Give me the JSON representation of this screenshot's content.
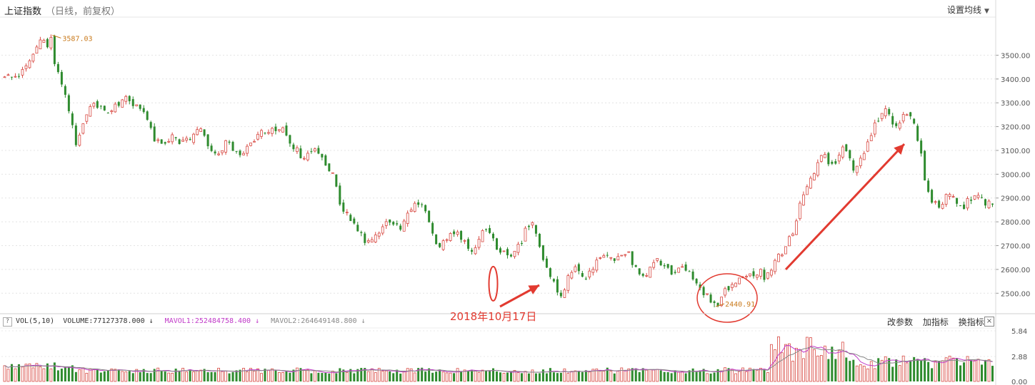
{
  "header": {
    "title": "上证指数",
    "subtitle": "（日线，前复权）",
    "ma_settings_label": "设置均线"
  },
  "volume_panel": {
    "help_icon": "?",
    "vol_label": "VOL(5,10)",
    "volume_text": "VOLUME:77127378.000",
    "volume_arrow": "↓",
    "mavol1_text": "MAVOL1:252484758.400",
    "mavol1_arrow": "↓",
    "mavol2_text": "MAVOL2:264649148.800",
    "mavol2_arrow": "↓",
    "tools": {
      "change_params": "改参数",
      "add_indicator": "加指标",
      "switch_indicator": "换指标"
    },
    "close_icon": "×",
    "ticks": [
      "5.84",
      "2.88",
      "0.00"
    ]
  },
  "annotations": {
    "high_label": "3587.03",
    "low_label": "2440.91",
    "date_label": "2018年10月17日"
  },
  "colors": {
    "up": "#d84a43",
    "down": "#2e8b2e",
    "mavol1": "#c03ac8",
    "mavol2": "#888888",
    "annotation": "#e23a30",
    "label": "#c97a1c"
  },
  "chart_data": {
    "type": "candlestick",
    "title": "上证指数",
    "y_ticks": [
      3500,
      3400,
      3300,
      3200,
      3100,
      3000,
      2900,
      2800,
      2700,
      2600,
      2500
    ],
    "ylim": [
      2420,
      3660
    ],
    "high": 3587.03,
    "low": 2440.91,
    "grid": true,
    "close_path": [
      3400,
      3420,
      3410,
      3440,
      3480,
      3530,
      3570,
      3550,
      3480,
      3420,
      3360,
      3230,
      3120,
      3190,
      3260,
      3300,
      3280,
      3260,
      3280,
      3300,
      3320,
      3300,
      3290,
      3270,
      3240,
      3150,
      3130,
      3140,
      3160,
      3130,
      3140,
      3150,
      3200,
      3180,
      3120,
      3080,
      3100,
      3130,
      3110,
      3080,
      3100,
      3130,
      3160,
      3180,
      3170,
      3190,
      3200,
      3170,
      3130,
      3090,
      3070,
      3100,
      3110,
      3060,
      3040,
      2980,
      2880,
      2830,
      2800,
      2760,
      2720,
      2700,
      2750,
      2780,
      2800,
      2790,
      2760,
      2810,
      2870,
      2880,
      2850,
      2800,
      2720,
      2700,
      2730,
      2760,
      2740,
      2700,
      2680,
      2720,
      2760,
      2740,
      2700,
      2680,
      2670,
      2660,
      2700,
      2760,
      2800,
      2720,
      2650,
      2580,
      2530,
      2480,
      2560,
      2600,
      2590,
      2560,
      2600,
      2640,
      2660,
      2650,
      2630,
      2650,
      2670,
      2620,
      2590,
      2570,
      2600,
      2640,
      2630,
      2580,
      2600,
      2610,
      2600,
      2570,
      2530,
      2500,
      2470,
      2450,
      2490,
      2530,
      2540,
      2550,
      2560,
      2580,
      2590,
      2570,
      2600,
      2640,
      2680,
      2720,
      2780,
      2880,
      2960,
      3000,
      3080,
      3100,
      3020,
      3060,
      3110,
      3080,
      3000,
      3060,
      3120,
      3180,
      3240,
      3270,
      3230,
      3200,
      3240,
      3270,
      3200,
      3100,
      2930,
      2880,
      2860,
      2900,
      2930,
      2880,
      2850,
      2890,
      2920,
      2900,
      2880,
      2870
    ],
    "volume": {
      "label": "VOL(5,10)",
      "ticks": [
        5.84,
        2.88,
        0.0
      ],
      "ylim": [
        0,
        5.84
      ],
      "current": 77127378.0,
      "mavol1": 252484758.4,
      "mavol2": 264649148.8
    }
  }
}
